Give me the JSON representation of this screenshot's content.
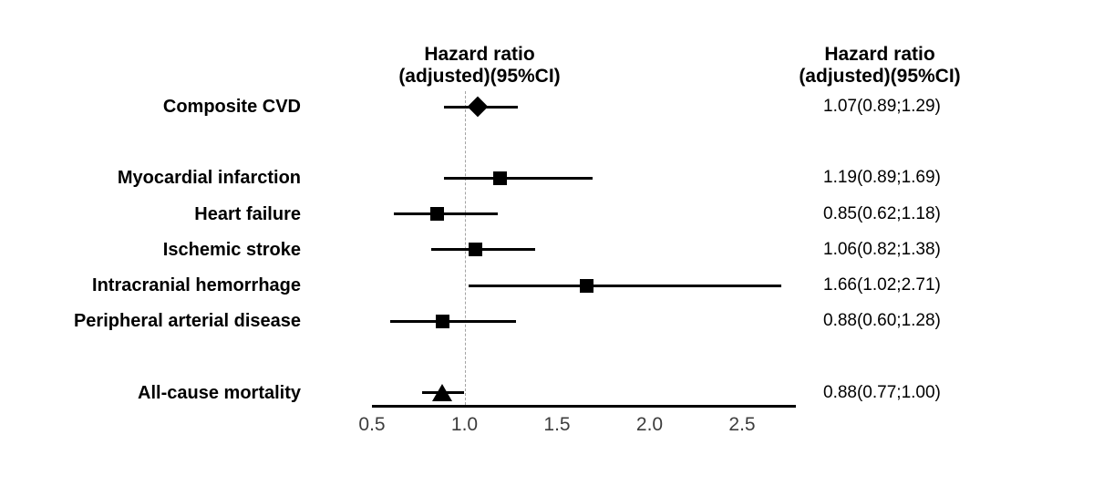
{
  "chart_data": {
    "type": "scatter",
    "variant": "forest-plot",
    "plot_column_header": {
      "line1": "Hazard ratio",
      "line2": "(adjusted)(95%CI)"
    },
    "value_column_header": {
      "line1": "Hazard ratio",
      "line2": "(adjusted)(95%CI)"
    },
    "rows": [
      {
        "label": "Composite CVD",
        "hr": 1.07,
        "ci_low": 0.89,
        "ci_high": 1.29,
        "display": "1.07(0.89;1.29)",
        "marker": "diamond",
        "slot": 0
      },
      {
        "label": "Myocardial infarction",
        "hr": 1.19,
        "ci_low": 0.89,
        "ci_high": 1.69,
        "display": "1.19(0.89;1.69)",
        "marker": "square",
        "slot": 2
      },
      {
        "label": "Heart failure",
        "hr": 0.85,
        "ci_low": 0.62,
        "ci_high": 1.18,
        "display": "0.85(0.62;1.18)",
        "marker": "square",
        "slot": 3
      },
      {
        "label": "Ischemic stroke",
        "hr": 1.06,
        "ci_low": 0.82,
        "ci_high": 1.38,
        "display": "1.06(0.82;1.38)",
        "marker": "square",
        "slot": 4
      },
      {
        "label": "Intracranial hemorrhage",
        "hr": 1.66,
        "ci_low": 1.02,
        "ci_high": 2.71,
        "display": "1.66(1.02;2.71)",
        "marker": "square",
        "slot": 5
      },
      {
        "label": "Peripheral arterial disease",
        "hr": 0.88,
        "ci_low": 0.6,
        "ci_high": 1.28,
        "display": "0.88(0.60;1.28)",
        "marker": "square",
        "slot": 6
      },
      {
        "label": "All-cause mortality",
        "hr": 0.88,
        "ci_low": 0.77,
        "ci_high": 1.0,
        "display": "0.88(0.77;1.00)",
        "marker": "triangle",
        "slot": 8
      }
    ],
    "x_axis": {
      "scale": "linear",
      "min": 0.5,
      "max": 2.79,
      "tick_labels": [
        "0.5",
        "1.0",
        "1.5",
        "2.0",
        "2.5"
      ],
      "tick_values": [
        0.5,
        1.0,
        1.5,
        2.0,
        2.5
      ],
      "reference_line": 1.0,
      "grid": "off"
    },
    "colors": {
      "marker": "#000000",
      "ci_line": "#000000",
      "axis_line": "#000000",
      "reference_line": "#a3a3a3",
      "tick_text": "#3d3d3d",
      "label_text": "#000000"
    }
  }
}
